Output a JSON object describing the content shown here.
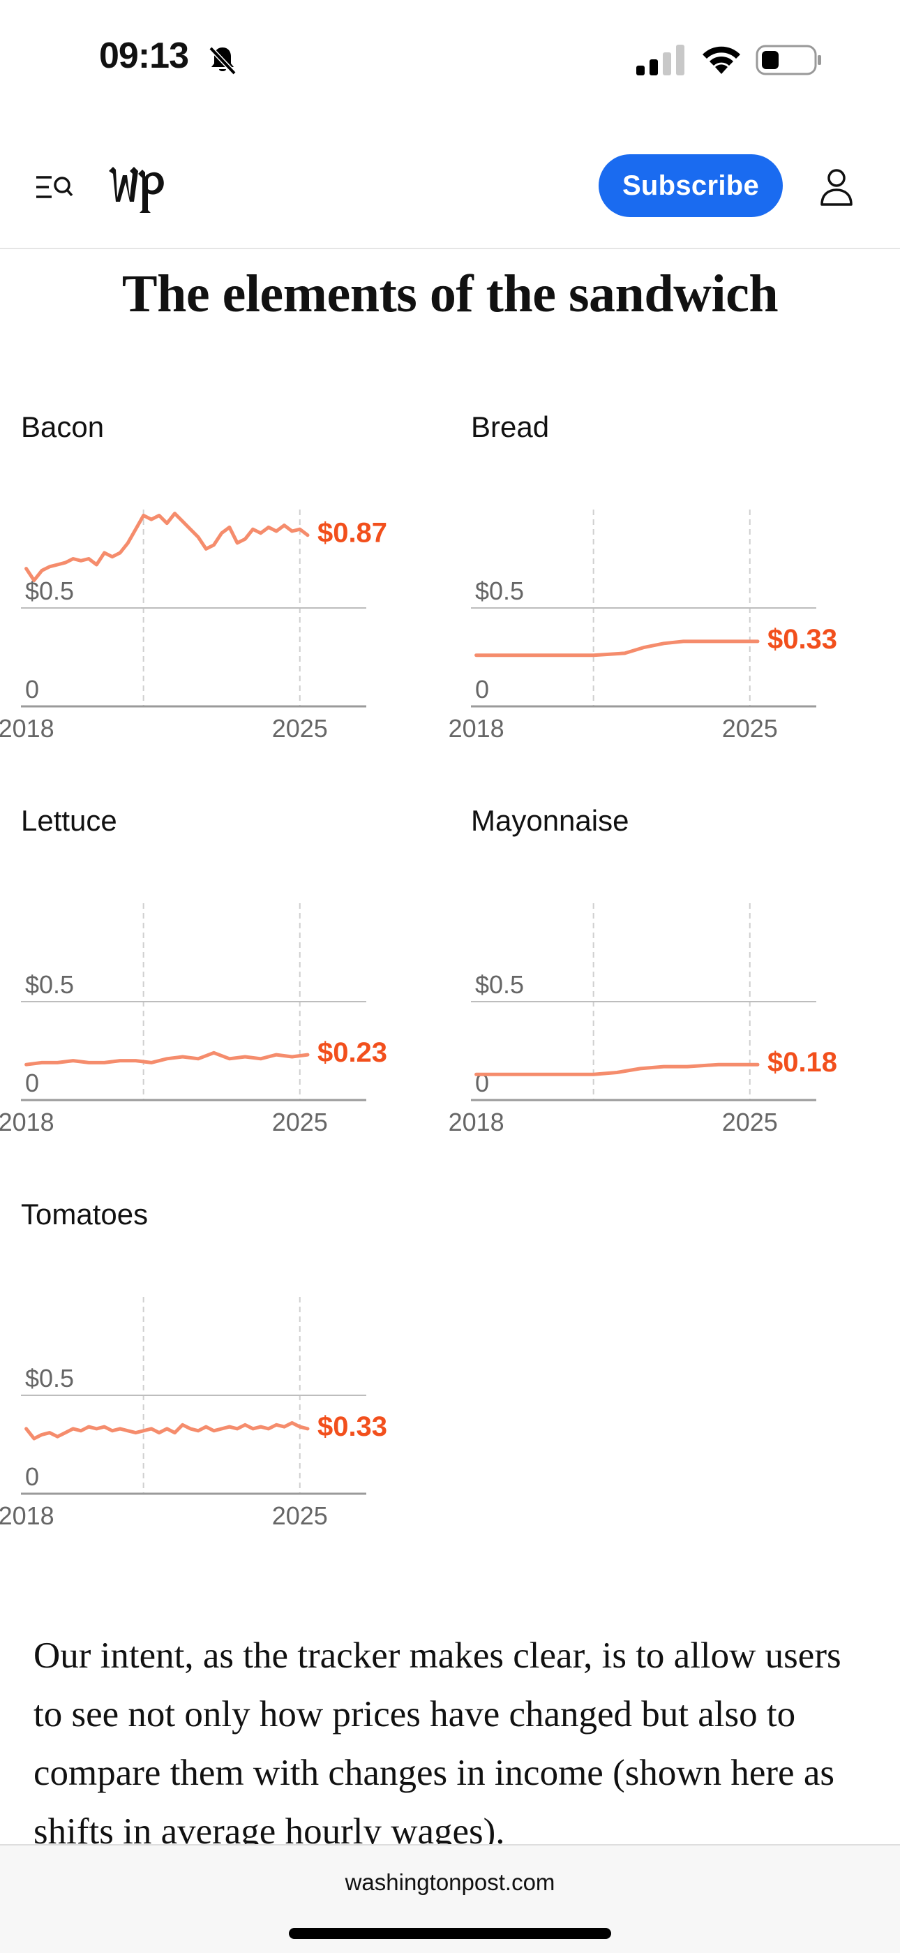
{
  "status_bar": {
    "time": "09:13"
  },
  "header": {
    "subscribe_label": "Subscribe"
  },
  "headline": "The elements of the sandwich",
  "colors": {
    "accent_line": "#f58c6c",
    "accent_label": "#f24f1c",
    "subscribe_bg": "#1a6bf0",
    "axis": "#aaaaaa",
    "tick_text": "#666666"
  },
  "chart_data": [
    {
      "type": "line",
      "title": "Bacon",
      "end_label": "$0.87",
      "x_ticks": [
        2018,
        2025
      ],
      "y_ticks": [
        "0",
        "$0.5"
      ],
      "ylim": [
        0,
        1.0
      ],
      "xlim": [
        2017.9,
        2026.7
      ],
      "grid": "vertical dashed at 2021 and 2025",
      "x": [
        2018.0,
        2018.2,
        2018.4,
        2018.6,
        2018.8,
        2019.0,
        2019.2,
        2019.4,
        2019.6,
        2019.8,
        2020.0,
        2020.2,
        2020.4,
        2020.6,
        2020.8,
        2021.0,
        2021.2,
        2021.4,
        2021.6,
        2021.8,
        2022.0,
        2022.2,
        2022.4,
        2022.6,
        2022.8,
        2023.0,
        2023.2,
        2023.4,
        2023.6,
        2023.8,
        2024.0,
        2024.2,
        2024.4,
        2024.6,
        2024.8,
        2025.0,
        2025.2
      ],
      "y": [
        0.7,
        0.64,
        0.69,
        0.71,
        0.72,
        0.73,
        0.75,
        0.74,
        0.75,
        0.72,
        0.78,
        0.76,
        0.78,
        0.83,
        0.9,
        0.97,
        0.95,
        0.97,
        0.93,
        0.98,
        0.94,
        0.9,
        0.86,
        0.8,
        0.82,
        0.88,
        0.91,
        0.83,
        0.85,
        0.9,
        0.88,
        0.91,
        0.89,
        0.92,
        0.89,
        0.9,
        0.87
      ]
    },
    {
      "type": "line",
      "title": "Bread",
      "end_label": "$0.33",
      "x_ticks": [
        2018,
        2025
      ],
      "y_ticks": [
        "0",
        "$0.5"
      ],
      "ylim": [
        0,
        1.0
      ],
      "xlim": [
        2017.9,
        2026.7
      ],
      "x": [
        2018.0,
        2019.0,
        2020.0,
        2021.0,
        2021.8,
        2022.3,
        2022.8,
        2023.3,
        2024.0,
        2024.6,
        2025.2
      ],
      "y": [
        0.26,
        0.26,
        0.26,
        0.26,
        0.27,
        0.3,
        0.32,
        0.33,
        0.33,
        0.33,
        0.33
      ]
    },
    {
      "type": "line",
      "title": "Lettuce",
      "end_label": "$0.23",
      "x_ticks": [
        2018,
        2025
      ],
      "y_ticks": [
        "0",
        "$0.5"
      ],
      "ylim": [
        0,
        1.0
      ],
      "xlim": [
        2017.9,
        2026.7
      ],
      "x": [
        2018.0,
        2018.4,
        2018.8,
        2019.2,
        2019.6,
        2020.0,
        2020.4,
        2020.8,
        2021.2,
        2021.6,
        2022.0,
        2022.4,
        2022.8,
        2023.2,
        2023.6,
        2024.0,
        2024.4,
        2024.8,
        2025.2
      ],
      "y": [
        0.18,
        0.19,
        0.19,
        0.2,
        0.19,
        0.19,
        0.2,
        0.2,
        0.19,
        0.21,
        0.22,
        0.21,
        0.24,
        0.21,
        0.22,
        0.21,
        0.23,
        0.22,
        0.23
      ]
    },
    {
      "type": "line",
      "title": "Mayonnaise",
      "end_label": "$0.18",
      "x_ticks": [
        2018,
        2025
      ],
      "y_ticks": [
        "0",
        "$0.5"
      ],
      "ylim": [
        0,
        1.0
      ],
      "xlim": [
        2017.9,
        2026.7
      ],
      "x": [
        2018.0,
        2019.0,
        2020.0,
        2021.0,
        2021.6,
        2022.2,
        2022.8,
        2023.4,
        2024.2,
        2025.2
      ],
      "y": [
        0.13,
        0.13,
        0.13,
        0.13,
        0.14,
        0.16,
        0.17,
        0.17,
        0.18,
        0.18
      ]
    },
    {
      "type": "line",
      "title": "Tomatoes",
      "end_label": "$0.33",
      "x_ticks": [
        2018,
        2025
      ],
      "y_ticks": [
        "0",
        "$0.5"
      ],
      "ylim": [
        0,
        1.0
      ],
      "xlim": [
        2017.9,
        2026.7
      ],
      "x": [
        2018.0,
        2018.2,
        2018.4,
        2018.6,
        2018.8,
        2019.0,
        2019.2,
        2019.4,
        2019.6,
        2019.8,
        2020.0,
        2020.2,
        2020.4,
        2020.6,
        2020.8,
        2021.0,
        2021.2,
        2021.4,
        2021.6,
        2021.8,
        2022.0,
        2022.2,
        2022.4,
        2022.6,
        2022.8,
        2023.0,
        2023.2,
        2023.4,
        2023.6,
        2023.8,
        2024.0,
        2024.2,
        2024.4,
        2024.6,
        2024.8,
        2025.0,
        2025.2
      ],
      "y": [
        0.33,
        0.28,
        0.3,
        0.31,
        0.29,
        0.31,
        0.33,
        0.32,
        0.34,
        0.33,
        0.34,
        0.32,
        0.33,
        0.32,
        0.31,
        0.32,
        0.33,
        0.31,
        0.33,
        0.31,
        0.35,
        0.33,
        0.32,
        0.34,
        0.32,
        0.33,
        0.34,
        0.33,
        0.35,
        0.33,
        0.34,
        0.33,
        0.35,
        0.34,
        0.36,
        0.34,
        0.33
      ]
    }
  ],
  "body_text": "Our intent, as the tracker makes clear, is to allow users to see not only how prices have changed but also to compare them with changes in income (shown here as shifts in average hourly wages).",
  "browser": {
    "url": "washingtonpost.com"
  }
}
